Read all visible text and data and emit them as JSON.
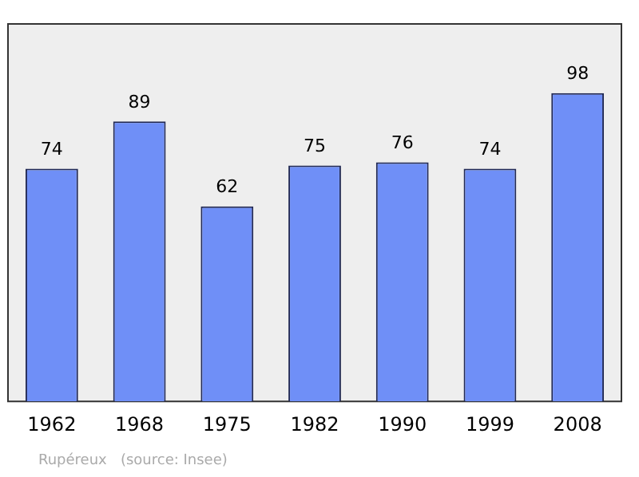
{
  "chart_data": {
    "type": "bar",
    "categories": [
      "1962",
      "1968",
      "1975",
      "1982",
      "1990",
      "1999",
      "2008"
    ],
    "values": [
      74,
      89,
      62,
      75,
      76,
      74,
      98
    ],
    "color": "#6f8ff7",
    "data_labels": true,
    "grid": false,
    "legend": false,
    "annotations": [
      "Rupéreux   (source: Insee)"
    ]
  }
}
